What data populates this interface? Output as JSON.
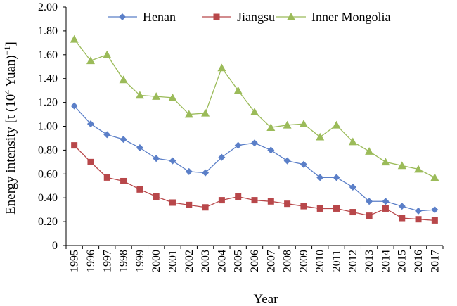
{
  "chart_data": {
    "type": "line",
    "xlabel": "Year",
    "ylabel": {
      "prefix": "Energy intensity [t (10",
      "sup1": "4",
      "middle": " Yuan)",
      "sup2": "−1",
      "suffix": "]"
    },
    "ylim": [
      0,
      2.0
    ],
    "yticks": [
      "0",
      "0.20",
      "0.40",
      "0.60",
      "0.80",
      "1.00",
      "1.20",
      "1.40",
      "1.60",
      "1.80",
      "2.00"
    ],
    "categories": [
      "1995",
      "1996",
      "1997",
      "1998",
      "1999",
      "2000",
      "2001",
      "2002",
      "2003",
      "2004",
      "2005",
      "2006",
      "2007",
      "2008",
      "2009",
      "2010",
      "2011",
      "2012",
      "2013",
      "2014",
      "2015",
      "2016",
      "2017"
    ],
    "grid": false,
    "legend_position": "top",
    "series": [
      {
        "name": "Henan",
        "color": "#5b7fc8",
        "marker": "diamond",
        "values": [
          1.17,
          1.02,
          0.93,
          0.89,
          0.82,
          0.73,
          0.71,
          0.62,
          0.61,
          0.74,
          0.84,
          0.86,
          0.8,
          0.71,
          0.68,
          0.57,
          0.57,
          0.49,
          0.37,
          0.37,
          0.33,
          0.29,
          0.3
        ]
      },
      {
        "name": "Jiangsu",
        "color": "#b8474a",
        "marker": "square",
        "values": [
          0.84,
          0.7,
          0.57,
          0.54,
          0.47,
          0.41,
          0.36,
          0.34,
          0.32,
          0.38,
          0.41,
          0.38,
          0.37,
          0.35,
          0.33,
          0.31,
          0.31,
          0.28,
          0.25,
          0.31,
          0.23,
          0.22,
          0.21
        ]
      },
      {
        "name": "Inner Mongolia",
        "color": "#9bbb59",
        "marker": "triangle",
        "values": [
          1.73,
          1.55,
          1.6,
          1.39,
          1.26,
          1.25,
          1.24,
          1.1,
          1.11,
          1.49,
          1.3,
          1.12,
          0.99,
          1.01,
          1.02,
          0.91,
          1.01,
          0.87,
          0.79,
          0.7,
          0.67,
          0.64,
          0.57
        ]
      }
    ]
  }
}
